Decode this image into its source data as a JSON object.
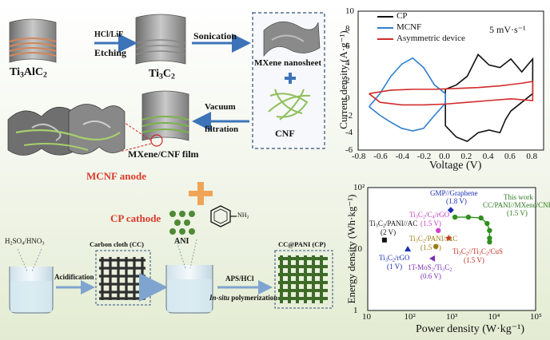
{
  "synthesis": {
    "max_phase": "Ti3AlC2",
    "etching_reagent": "HCl/LiF",
    "etching_label": "Etching",
    "mxene": "Ti3C2",
    "sonication_label": "Sonication",
    "nanosheet_label": "MXene nanosheet",
    "plus": "+",
    "cnf_label": "CNF",
    "vacuum_label_1": "Vacuum",
    "vacuum_label_2": "filtration",
    "film_label": "MXene/CNF film",
    "anode_label": "MCNF anode",
    "cathode_label": "CP cathode",
    "ani_label": "ANI",
    "nh2_label": "NH2",
    "acid_label": "H2SO4/HNO3",
    "acidification_label": "Acidification",
    "carbon_cloth_label": "Carbon cloth (CC)",
    "aps_label": "APS/HCl",
    "insitu_label_1": "In-situ",
    "insitu_label_2": "polymerization",
    "ccpani_label": "CC@PANI (CP)"
  },
  "cv_chart": {
    "ylabel": "Current density (A·g⁻¹)",
    "xlabel": "Voltage (V)",
    "scan_rate": "5 mV·s⁻¹",
    "x_ticks": [
      "-0.8",
      "-0.6",
      "-0.4",
      "-0.2",
      "0.0",
      "0.2",
      "0.4",
      "0.6",
      "0.8"
    ],
    "y_ticks": [
      "-6",
      "-4",
      "-2",
      "0",
      "2",
      "4",
      "6",
      "8",
      "10"
    ],
    "legend": [
      "CP",
      "MCNF",
      "Asymmetric device"
    ],
    "colors": {
      "CP": "#111111",
      "MCNF": "#2f7fd0",
      "Asym": "#d22b2b"
    }
  },
  "ragone_chart": {
    "ylabel": "Energy density (Wh·kg⁻¹)",
    "xlabel": "Power density (W·kg⁻¹)",
    "x_ticks": [
      "10",
      "10²",
      "10³",
      "10⁴",
      "10⁵"
    ],
    "y_ticks": [
      "1",
      "10",
      "10²"
    ],
    "labels": {
      "gmp": "GMP//Graphene",
      "gmp_v": "(1.8 V)",
      "this_work": "This work",
      "this_work_name": "CC/PANI//MXene/CNF",
      "this_work_v": "(1.5 V)",
      "tc_rgo": "Ti3C2/C4/rGO",
      "tc_rgo_v": "(1.5 V)",
      "pani_ac_a": "Ti3C2/PANI//AC",
      "pani_ac_a_v": "(2 V)",
      "pani_ac_b": "Ti3C2/PANI//AC",
      "pani_ac_b_v": "(1.5 V)",
      "rgo": "Ti3C2/rGO",
      "rgo_v": "(1 V)",
      "mos2": "1T-MoS2/Ti3C2",
      "mos2_v": "(0.6 V)",
      "cus": "Ti3C2//Ti3C2/CuS",
      "cus_v": "(1.5 V)"
    }
  },
  "chart_data": [
    {
      "type": "line",
      "xlabel": "Voltage (V)",
      "ylabel": "Current density (A·g⁻¹)",
      "xlim": [
        -0.8,
        0.9
      ],
      "ylim": [
        -6,
        10
      ],
      "series": [
        {
          "name": "CP",
          "x": [
            0.0,
            0.1,
            0.2,
            0.3,
            0.4,
            0.5,
            0.6,
            0.7,
            0.8,
            0.8,
            0.7,
            0.6,
            0.55,
            0.5,
            0.4,
            0.3,
            0.2,
            0.1,
            0.0,
            0.0
          ],
          "y": [
            1.0,
            1.5,
            2.5,
            5.0,
            3.8,
            3.5,
            4.5,
            3.0,
            4.5,
            0.5,
            -0.5,
            -1.5,
            -2.5,
            -4.0,
            -3.7,
            -4.0,
            -5.0,
            -4.5,
            -3.2,
            1.0
          ]
        },
        {
          "name": "MCNF",
          "x": [
            -0.7,
            -0.6,
            -0.5,
            -0.4,
            -0.3,
            -0.2,
            -0.1,
            0.0,
            0.0,
            -0.1,
            -0.2,
            -0.3,
            -0.4,
            -0.5,
            -0.6,
            -0.7
          ],
          "y": [
            -1.0,
            0.5,
            2.5,
            3.9,
            4.6,
            3.5,
            1.5,
            0.5,
            -0.6,
            -2.0,
            -3.5,
            -3.8,
            -3.5,
            -2.8,
            -2.0,
            -1.0
          ]
        },
        {
          "name": "Asymmetric device",
          "x": [
            -0.7,
            -0.5,
            -0.3,
            -0.1,
            0.1,
            0.3,
            0.5,
            0.7,
            0.8,
            0.8,
            0.6,
            0.4,
            0.2,
            0.0,
            -0.2,
            -0.4,
            -0.6,
            -0.7
          ],
          "y": [
            0.5,
            0.9,
            1.0,
            1.0,
            1.1,
            1.2,
            1.4,
            1.7,
            1.9,
            -0.3,
            -0.1,
            -0.3,
            -0.5,
            -0.7,
            -0.8,
            -0.8,
            -0.5,
            0.5
          ]
        }
      ]
    },
    {
      "type": "scatter",
      "xlabel": "Power density (W·kg⁻¹)",
      "ylabel": "Energy density (Wh·kg⁻¹)",
      "x_scale": "log",
      "y_scale": "log",
      "xlim": [
        10,
        100000
      ],
      "ylim": [
        1,
        100
      ],
      "series": [
        {
          "name": "CC/PANI//MXene/CNF",
          "x": [
            1200,
            2500,
            5000,
            7000,
            8000,
            8000,
            8000
          ],
          "y": [
            33,
            33,
            32,
            26,
            20,
            15,
            13
          ]
        },
        {
          "name": "GMP//Graphene",
          "x": [
            950
          ],
          "y": [
            43
          ]
        },
        {
          "name": "Ti3C2/C4/rGO",
          "x": [
            480
          ],
          "y": [
            20
          ]
        },
        {
          "name": "Ti3C2/PANI//AC (2 V)",
          "x": [
            25
          ],
          "y": [
            14
          ]
        },
        {
          "name": "Ti3C2/PANI//AC (1.5 V)",
          "x": [
            850
          ],
          "y": [
            15
          ]
        },
        {
          "name": "Ti3C2/rGO",
          "x": [
            90
          ],
          "y": [
            10
          ]
        },
        {
          "name": "1T-MoS2/Ti3C2",
          "x": [
            350
          ],
          "y": [
            7
          ]
        },
        {
          "name": "Ti3C2//Ti3C2/CuS",
          "x": [
            420
          ],
          "y": [
            11
          ]
        }
      ]
    }
  ]
}
